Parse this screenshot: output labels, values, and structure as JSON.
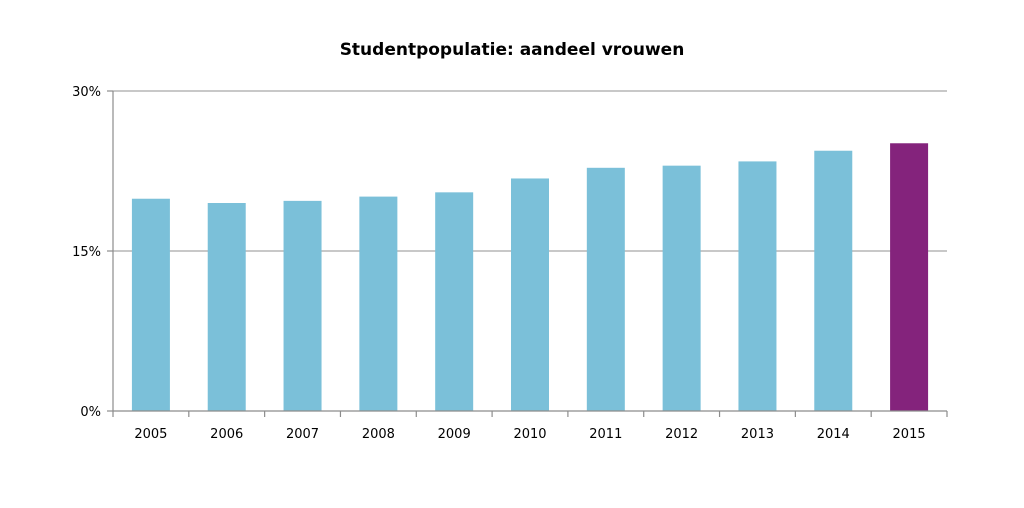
{
  "chart_data": {
    "type": "bar",
    "title": "Studentpopulatie: aandeel vrouwen",
    "xlabel": "",
    "ylabel": "",
    "categories": [
      "2005",
      "2006",
      "2007",
      "2008",
      "2009",
      "2010",
      "2011",
      "2012",
      "2013",
      "2014",
      "2015"
    ],
    "values": [
      19.9,
      19.5,
      19.7,
      20.1,
      20.5,
      21.8,
      22.8,
      23.0,
      23.4,
      24.4,
      25.1
    ],
    "ylim": [
      0,
      30
    ],
    "yticks": [
      0,
      15,
      30
    ],
    "ytick_labels": [
      "0%",
      "15%",
      "30%"
    ],
    "grid": true,
    "legend": "none",
    "colors": {
      "bar": "#7bc0d9",
      "highlight_bar": "#84237c",
      "grid": "#a6a6a6",
      "axis": "#8c8c8c"
    },
    "highlight_category": "2015"
  }
}
